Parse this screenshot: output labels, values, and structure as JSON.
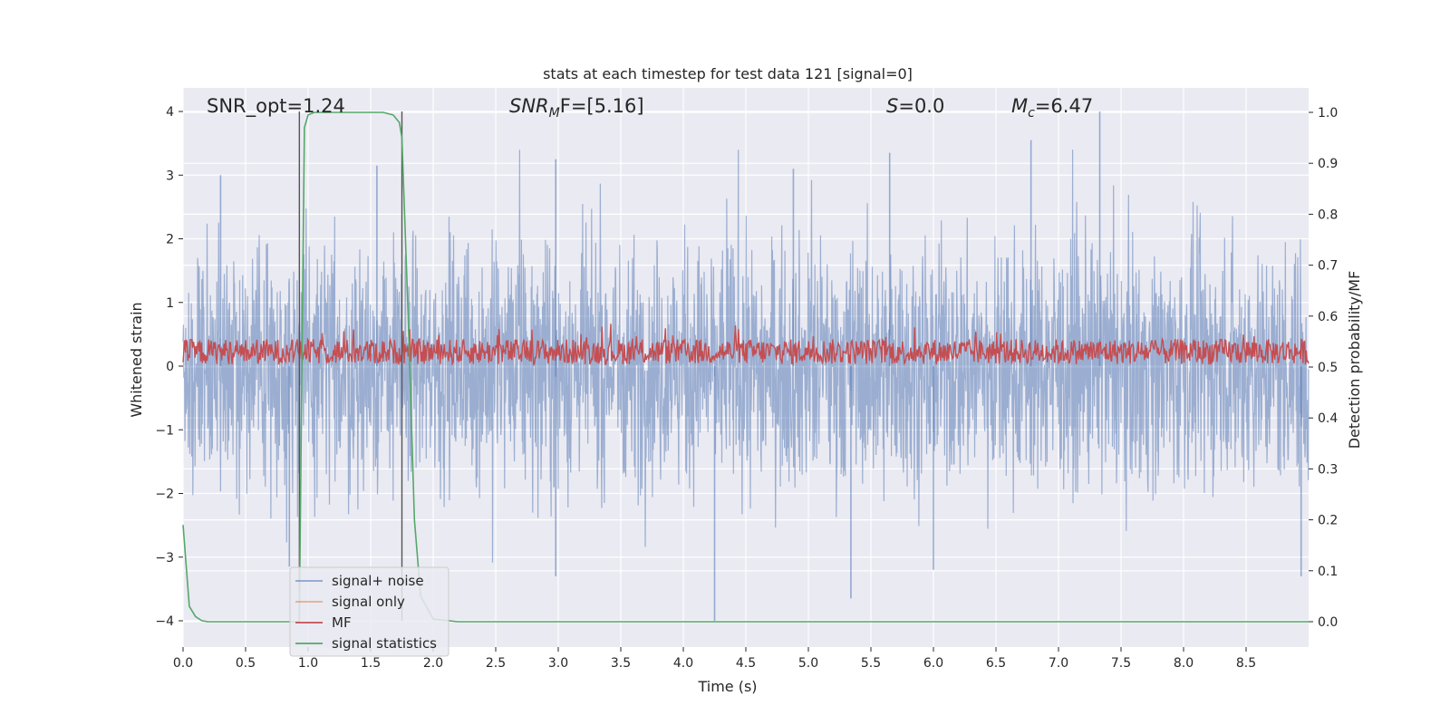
{
  "chart_data": {
    "type": "line",
    "title": "stats at each timestep for test data 121 [signal=0]",
    "xlabel": "Time (s)",
    "ylabel": "Whitened strain",
    "y2label": "Detection probability/MF",
    "xlim": [
      0.0,
      9.0
    ],
    "ylim": [
      -4.4,
      4.4
    ],
    "y2lim": [
      -0.05,
      1.04
    ],
    "xticks": [
      0.0,
      0.5,
      1.0,
      1.5,
      2.0,
      2.5,
      3.0,
      3.5,
      4.0,
      4.5,
      5.0,
      5.5,
      6.0,
      6.5,
      7.0,
      7.5,
      8.0,
      8.5
    ],
    "xtick_labels": [
      "0.0",
      "0.5",
      "1.0",
      "1.5",
      "2.0",
      "2.5",
      "3.0",
      "3.5",
      "4.0",
      "4.5",
      "5.0",
      "5.5",
      "6.0",
      "6.5",
      "7.0",
      "7.5",
      "8.0",
      "8.5"
    ],
    "yticks": [
      4,
      3,
      2,
      1,
      0,
      -1,
      -2,
      -3,
      -4
    ],
    "ytick_labels": [
      "4",
      "3",
      "2",
      "1",
      "0",
      "−1",
      "−2",
      "−3",
      "−4"
    ],
    "y2ticks": [
      1.0,
      0.9,
      0.8,
      0.7,
      0.6,
      0.5,
      0.4,
      0.3,
      0.2,
      0.1,
      0.0
    ],
    "y2tick_labels": [
      "1.0",
      "0.9",
      "0.8",
      "0.7",
      "0.6",
      "0.5",
      "0.4",
      "0.3",
      "0.2",
      "0.1",
      "0.0"
    ],
    "grid": true,
    "legend_position": "lower-left",
    "annotations": {
      "snr_opt": "SNR_opt=1.24",
      "snr_mf_base": "SNR",
      "snr_mf_sub": "M",
      "snr_mf_rest": "F=[5.16]",
      "s_italic": "S",
      "s_rest": "=0.0",
      "mc_italic": "M",
      "mc_sub": "c",
      "mc_rest": "=6.47"
    },
    "vlines": [
      0.93,
      1.75
    ],
    "series": [
      {
        "name": "signal+ noise",
        "color": "#4c72b0",
        "axis": "left",
        "values_note": "",
        "amplitude_typical": 1.6,
        "peaks": [
          [
            0.3,
            3.0
          ],
          [
            0.85,
            -3.15
          ],
          [
            1.55,
            3.15
          ],
          [
            2.98,
            3.25
          ],
          [
            2.98,
            -3.3
          ],
          [
            4.25,
            -4.0
          ],
          [
            4.88,
            3.1
          ],
          [
            5.34,
            -3.65
          ],
          [
            5.65,
            3.35
          ],
          [
            6.0,
            -3.2
          ],
          [
            6.78,
            3.55
          ],
          [
            7.33,
            4.0
          ],
          [
            8.94,
            -3.3
          ]
        ]
      },
      {
        "name": "signal only",
        "color": "#dd8452",
        "axis": "left",
        "values": []
      },
      {
        "name": "MF",
        "color": "#c44e52",
        "axis": "right",
        "range": [
          0.5,
          0.6
        ],
        "mean": 0.53
      },
      {
        "name": "signal statistics",
        "color": "#55a868",
        "axis": "right",
        "x": [
          0.0,
          0.05,
          0.1,
          0.15,
          0.2,
          0.3,
          0.6,
          0.9,
          0.93,
          0.95,
          0.97,
          1.0,
          1.05,
          1.2,
          1.4,
          1.6,
          1.68,
          1.73,
          1.75,
          1.8,
          1.85,
          1.9,
          2.0,
          2.2,
          2.5,
          3.0,
          4.0,
          5.0,
          6.0,
          7.0,
          8.0,
          9.0
        ],
        "y": [
          0.19,
          0.03,
          0.01,
          0.002,
          0.0,
          0.0,
          0.0,
          0.0,
          0.0,
          0.5,
          0.97,
          0.995,
          1.0,
          1.0,
          1.0,
          1.0,
          0.995,
          0.98,
          0.95,
          0.6,
          0.2,
          0.05,
          0.005,
          0.0,
          0.0,
          0.0,
          0.0,
          0.0,
          0.0,
          0.0,
          0.0,
          0.0
        ]
      }
    ]
  }
}
